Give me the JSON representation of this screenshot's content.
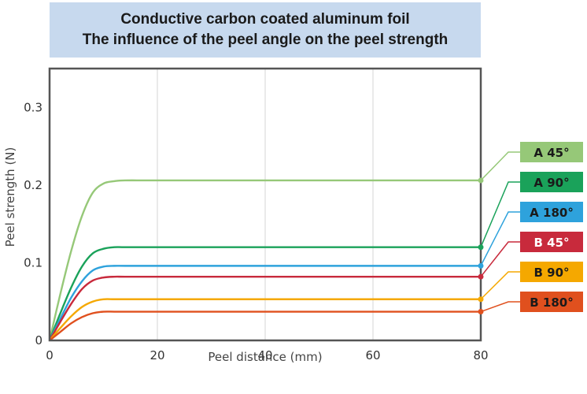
{
  "chart_data": {
    "type": "line",
    "title": "Conductive carbon coated aluminum foil",
    "subtitle": "The influence of the peel angle on the peel strength",
    "xlabel": "Peel distance (mm)",
    "ylabel": "Peel  strength (N)",
    "xlim": [
      0,
      80
    ],
    "ylim": [
      0,
      0.35
    ],
    "x_ticks": [
      "0",
      "20",
      "40",
      "60",
      "80"
    ],
    "y_ticks": [
      "0",
      "0.1",
      "0.2",
      "0.3"
    ],
    "grid": "vertical",
    "legend_placement": "right",
    "x": [
      0,
      2,
      4,
      6,
      8,
      10,
      12,
      14,
      20,
      40,
      60,
      80
    ],
    "series": [
      {
        "name": "A 45°",
        "color": "#96c878",
        "label_color": "#1a1a1a",
        "values": [
          0,
          0.06,
          0.115,
          0.16,
          0.19,
          0.202,
          0.205,
          0.206,
          0.206,
          0.206,
          0.206,
          0.206
        ]
      },
      {
        "name": "A 90°",
        "color": "#1aa25a",
        "label_color": "#1a1a1a",
        "values": [
          0,
          0.035,
          0.068,
          0.095,
          0.112,
          0.118,
          0.12,
          0.12,
          0.12,
          0.12,
          0.12,
          0.12
        ]
      },
      {
        "name": "A 180°",
        "color": "#2ea2dc",
        "label_color": "#1a1a1a",
        "values": [
          0,
          0.028,
          0.055,
          0.076,
          0.09,
          0.095,
          0.096,
          0.096,
          0.096,
          0.096,
          0.096,
          0.096
        ]
      },
      {
        "name": "B 45°",
        "color": "#c82a3c",
        "label_color": "#ffffff",
        "values": [
          0,
          0.024,
          0.047,
          0.066,
          0.077,
          0.081,
          0.082,
          0.082,
          0.082,
          0.082,
          0.082,
          0.082
        ]
      },
      {
        "name": "B 90°",
        "color": "#f5a800",
        "label_color": "#1a1a1a",
        "values": [
          0,
          0.016,
          0.031,
          0.043,
          0.05,
          0.053,
          0.053,
          0.053,
          0.053,
          0.053,
          0.053,
          0.053
        ]
      },
      {
        "name": "B 180°",
        "color": "#e0501e",
        "label_color": "#1a1a1a",
        "values": [
          0,
          0.011,
          0.022,
          0.03,
          0.035,
          0.037,
          0.037,
          0.037,
          0.037,
          0.037,
          0.037,
          0.037
        ]
      }
    ]
  }
}
